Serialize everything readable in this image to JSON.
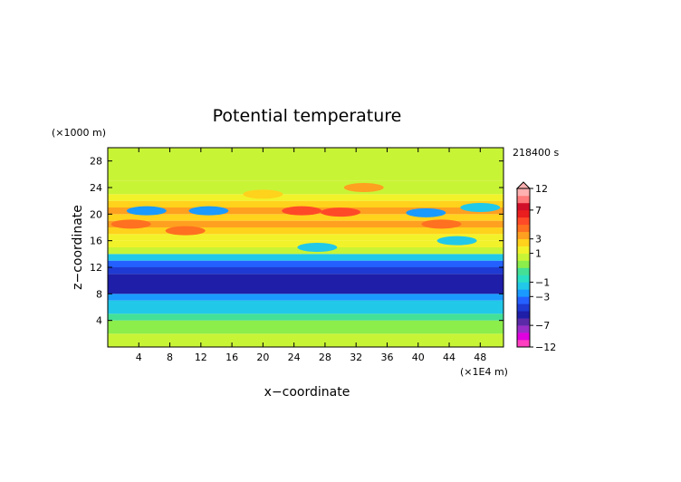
{
  "chart_data": {
    "type": "heatmap",
    "title": "Potential temperature",
    "xlabel": "x−coordinate",
    "ylabel": "z−coordinate",
    "x_unit": "(×1E4 m)",
    "y_unit": "(×1000 m)",
    "time_label": "218400 s",
    "xlim": [
      0,
      51
    ],
    "ylim": [
      0,
      30
    ],
    "x_ticks": [
      4,
      8,
      12,
      16,
      20,
      24,
      28,
      32,
      36,
      40,
      44,
      48
    ],
    "y_ticks": [
      4,
      8,
      12,
      16,
      20,
      24,
      28
    ],
    "grid": false,
    "colorbar": {
      "position": "right",
      "labels": [
        "12",
        "7",
        "3",
        "1",
        "−1",
        "−3",
        "−7",
        "−12"
      ],
      "label_values": [
        12,
        7,
        3,
        1,
        -1,
        -3,
        -7,
        -12
      ],
      "levels": [
        -12,
        -10,
        -8,
        -7,
        -6,
        -5,
        -4,
        -3,
        -2,
        -1,
        -0.5,
        0,
        0.5,
        1,
        2,
        3,
        4,
        5,
        6,
        7,
        8,
        10,
        12
      ],
      "colors": [
        "#ff3ec0",
        "#e000e0",
        "#9a2ec8",
        "#5a2aa8",
        "#1e1ea8",
        "#1e3ad2",
        "#2460ff",
        "#1a9aff",
        "#22c8e8",
        "#2ae0c4",
        "#44e096",
        "#8cee4a",
        "#c8f436",
        "#f2f22a",
        "#ffd21c",
        "#ffa020",
        "#ff7020",
        "#ff4a28",
        "#ea1e1e",
        "#d20f2a",
        "#ff7a7a",
        "#ffb0b0"
      ]
    },
    "bands": [
      {
        "z_range": [
          0,
          2
        ],
        "value": 0.5
      },
      {
        "z_range": [
          2,
          4
        ],
        "value": 0.0
      },
      {
        "z_range": [
          4,
          5
        ],
        "value": -0.5
      },
      {
        "z_range": [
          5,
          7
        ],
        "value": -1.5
      },
      {
        "z_range": [
          7,
          8
        ],
        "value": -2.5
      },
      {
        "z_range": [
          8,
          11
        ],
        "value": -5.5
      },
      {
        "z_range": [
          11,
          12
        ],
        "value": -5.0
      },
      {
        "z_range": [
          12,
          13
        ],
        "value": -3.5
      },
      {
        "z_range": [
          13,
          14
        ],
        "value": -1.5
      },
      {
        "z_range": [
          14,
          15
        ],
        "value": 0.5
      },
      {
        "z_range": [
          15,
          16
        ],
        "value": 1.5
      },
      {
        "z_range": [
          16,
          17
        ],
        "value": 1.0
      },
      {
        "z_range": [
          17,
          18
        ],
        "value": 2.5
      },
      {
        "z_range": [
          18,
          19
        ],
        "value": 3.0
      },
      {
        "z_range": [
          19,
          20
        ],
        "value": 2.5
      },
      {
        "z_range": [
          20,
          21
        ],
        "value": 3.5
      },
      {
        "z_range": [
          21,
          22
        ],
        "value": 2.0
      },
      {
        "z_range": [
          22,
          23
        ],
        "value": 1.0
      },
      {
        "z_range": [
          23,
          25
        ],
        "value": 0.5
      },
      {
        "z_range": [
          25,
          30
        ],
        "value": 0.5
      }
    ],
    "anomalies": [
      {
        "x": 3,
        "z": 18.5,
        "value": 4.5
      },
      {
        "x": 10,
        "z": 17.5,
        "value": 4.5
      },
      {
        "x": 25,
        "z": 20.5,
        "value": 5.0
      },
      {
        "x": 30,
        "z": 20.3,
        "value": 5.5
      },
      {
        "x": 43,
        "z": 18.5,
        "value": 4.5
      },
      {
        "x": 5,
        "z": 20.5,
        "value": -2.5
      },
      {
        "x": 13,
        "z": 20.5,
        "value": -2.5
      },
      {
        "x": 41,
        "z": 20.2,
        "value": -2.5
      },
      {
        "x": 48,
        "z": 21,
        "value": -2.0
      },
      {
        "x": 27,
        "z": 15,
        "value": -1.5
      },
      {
        "x": 45,
        "z": 16,
        "value": -1.5
      },
      {
        "x": 33,
        "z": 24,
        "value": 3.0
      },
      {
        "x": 20,
        "z": 23,
        "value": 2.5
      }
    ]
  }
}
